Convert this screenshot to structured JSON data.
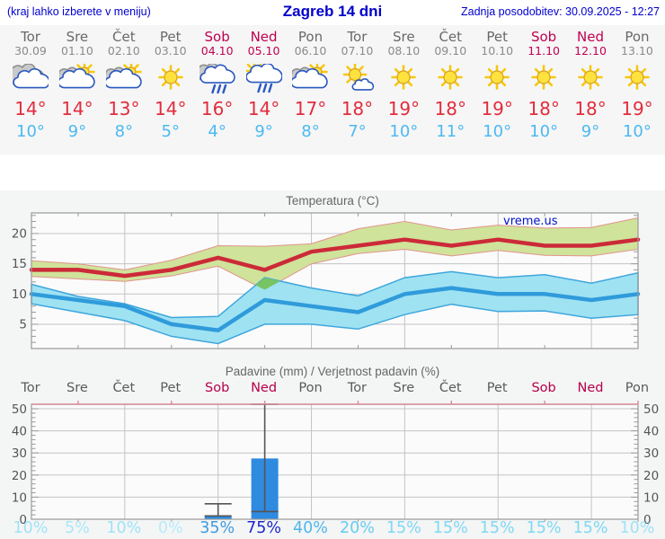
{
  "header": {
    "left": "(kraj lahko izberete v meniju)",
    "title": "Zagreb 14 dni",
    "right": "Zadnja posodobitev: 30.09.2025 - 12:27"
  },
  "forecast": {
    "days": [
      {
        "name": "Tor",
        "date": "30.09",
        "weekend": false,
        "icon": "cloudy",
        "high_label": "14°",
        "low_label": "10°"
      },
      {
        "name": "Sre",
        "date": "01.10",
        "weekend": false,
        "icon": "sun-cloud",
        "high_label": "14°",
        "low_label": "9°"
      },
      {
        "name": "Čet",
        "date": "02.10",
        "weekend": false,
        "icon": "sun-cloud",
        "high_label": "13°",
        "low_label": "8°"
      },
      {
        "name": "Pet",
        "date": "03.10",
        "weekend": false,
        "icon": "sun",
        "high_label": "14°",
        "low_label": "5°"
      },
      {
        "name": "Sob",
        "date": "04.10",
        "weekend": true,
        "icon": "rain",
        "high_label": "16°",
        "low_label": "4°"
      },
      {
        "name": "Ned",
        "date": "05.10",
        "weekend": true,
        "icon": "sun-rain",
        "high_label": "14°",
        "low_label": "9°"
      },
      {
        "name": "Pon",
        "date": "06.10",
        "weekend": false,
        "icon": "sun-cloud",
        "high_label": "17°",
        "low_label": "8°"
      },
      {
        "name": "Tor",
        "date": "07.10",
        "weekend": false,
        "icon": "sun-small-cloud",
        "high_label": "18°",
        "low_label": "7°"
      },
      {
        "name": "Sre",
        "date": "08.10",
        "weekend": false,
        "icon": "sun",
        "high_label": "19°",
        "low_label": "10°"
      },
      {
        "name": "Čet",
        "date": "09.10",
        "weekend": false,
        "icon": "sun",
        "high_label": "18°",
        "low_label": "11°"
      },
      {
        "name": "Pet",
        "date": "10.10",
        "weekend": false,
        "icon": "sun",
        "high_label": "19°",
        "low_label": "10°"
      },
      {
        "name": "Sob",
        "date": "11.10",
        "weekend": true,
        "icon": "sun",
        "high_label": "18°",
        "low_label": "10°"
      },
      {
        "name": "Ned",
        "date": "12.10",
        "weekend": true,
        "icon": "sun",
        "high_label": "18°",
        "low_label": "9°"
      },
      {
        "name": "Pon",
        "date": "13.10",
        "weekend": false,
        "icon": "sun",
        "high_label": "19°",
        "low_label": "10°"
      }
    ]
  },
  "chart_data": [
    {
      "type": "area",
      "title": "Temperatura (°C)",
      "watermark": "vreme.us",
      "x_count": 14,
      "yticks": [
        5,
        10,
        15,
        20
      ],
      "ylim": [
        1,
        23.5
      ],
      "grid": true,
      "series": [
        {
          "name": "high",
          "values": [
            14,
            14,
            13,
            14,
            16,
            14,
            17,
            18,
            19,
            18,
            19,
            18,
            18,
            19
          ]
        },
        {
          "name": "high_range_max",
          "values": [
            15.5,
            15.0,
            14.0,
            15.6,
            18.0,
            17.9,
            18.3,
            20.8,
            22.0,
            20.6,
            21.4,
            20.9,
            21.0,
            22.6
          ]
        },
        {
          "name": "high_range_min",
          "values": [
            12.9,
            12.5,
            12.1,
            13.0,
            14.6,
            10.7,
            15.0,
            16.7,
            17.4,
            16.3,
            17.2,
            16.4,
            16.3,
            17.4
          ]
        },
        {
          "name": "low",
          "values": [
            10,
            9,
            8,
            5,
            4,
            9,
            8,
            7,
            10,
            11,
            10,
            10,
            9,
            10
          ]
        },
        {
          "name": "low_range_max",
          "values": [
            11.6,
            9.6,
            8.4,
            6.1,
            6.3,
            12.7,
            11.0,
            9.7,
            12.7,
            13.7,
            12.7,
            13.2,
            11.8,
            13.5
          ]
        },
        {
          "name": "low_range_min",
          "values": [
            8.4,
            7.0,
            5.6,
            3.0,
            1.8,
            5.0,
            5.0,
            4.2,
            6.6,
            8.3,
            7.1,
            7.2,
            6.0,
            6.6
          ]
        }
      ]
    },
    {
      "type": "bar",
      "title": "Padavine (mm) / Verjetnost padavin (%)",
      "categories": [
        "Tor",
        "Sre",
        "Čet",
        "Pet",
        "Sob",
        "Ned",
        "Pon",
        "Tor",
        "Sre",
        "Čet",
        "Pet",
        "Sob",
        "Ned",
        "Pon"
      ],
      "values": [
        0,
        0,
        0,
        0,
        1.5,
        27.5,
        0,
        0,
        0,
        0,
        0,
        0,
        0,
        0
      ],
      "whisker_lo": [
        null,
        null,
        null,
        null,
        1.5,
        3.5,
        null,
        null,
        null,
        null,
        null,
        null,
        null,
        null
      ],
      "whisker_hi": [
        null,
        null,
        null,
        null,
        7,
        52,
        null,
        null,
        null,
        null,
        null,
        null,
        null,
        null
      ],
      "probabilities": [
        "10%",
        "5%",
        "10%",
        "0%",
        "35%",
        "75%",
        "40%",
        "20%",
        "15%",
        "15%",
        "15%",
        "15%",
        "15%",
        "10%"
      ],
      "prob_colors": [
        "#9fe3f7",
        "#abe7f8",
        "#9fe3f7",
        "#b7ecfa",
        "#3e9be2",
        "#1d27cd",
        "#4db7ee",
        "#66ccf2",
        "#7ed8f4",
        "#7ed8f4",
        "#7ed8f4",
        "#7ed8f4",
        "#7ed8f4",
        "#9fe3f7"
      ],
      "yticks": [
        0,
        10,
        20,
        30,
        40,
        50
      ],
      "ylim": [
        0,
        52
      ]
    }
  ],
  "colors": {
    "header_blue": "#0000cc",
    "weekday": "#696969",
    "weekend": "#c00050",
    "high_temp": "#e22c3d",
    "low_temp": "#4cb9f1",
    "high_line": "#cc2a38",
    "high_band": "#cfe39a",
    "high_band_edge": "#e2938d",
    "low_line": "#2f9bdb",
    "low_band": "#9fe2f2",
    "low_band_edge": "#3fa6dc",
    "band_overlap": "#77c463",
    "bar": "#2e8be0",
    "whisker": "#555555",
    "grid": "#c4c4c4",
    "plot_border": "#9a9a9a",
    "axis_text": "#555555",
    "precip_top_border": "#d9899b"
  }
}
